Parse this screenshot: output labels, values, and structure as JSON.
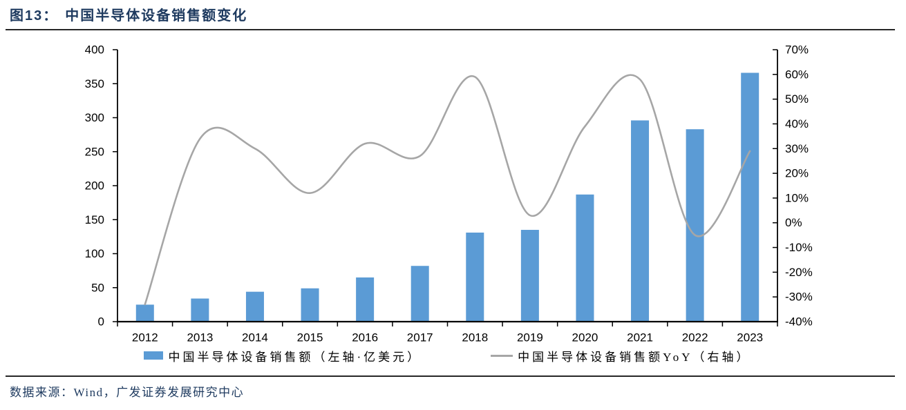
{
  "header": {
    "figure_label": "图13：",
    "figure_title": "中国半导体设备销售额变化"
  },
  "footer": {
    "source_text": "数据来源：Wind，广发证券发展研究中心"
  },
  "colors": {
    "accent": "#1E3A5F",
    "rule": "#262626",
    "bar": "#5B9BD5",
    "line": "#A6A6A6",
    "axis": "#000000"
  },
  "chart_data": {
    "type": "bar+line combo",
    "title": "中国半导体设备销售额变化",
    "categories": [
      "2012",
      "2013",
      "2014",
      "2015",
      "2016",
      "2017",
      "2018",
      "2019",
      "2020",
      "2021",
      "2022",
      "2023"
    ],
    "series": [
      {
        "name": "中国半导体设备销售额（左轴·亿美元）",
        "type": "bar",
        "axis": "left",
        "values": [
          25,
          34,
          44,
          49,
          65,
          82,
          131,
          135,
          187,
          296,
          283,
          366
        ]
      },
      {
        "name": "中国半导体设备销售额YoY（右轴）",
        "type": "line",
        "axis": "right",
        "values": [
          -33,
          34,
          30,
          12,
          32,
          27,
          59,
          3,
          39,
          58,
          -5,
          29
        ]
      }
    ],
    "left_axis": {
      "min": 0,
      "max": 400,
      "tick_values": [
        400,
        350,
        300,
        250,
        200,
        150,
        100,
        50,
        0
      ],
      "tick_labels": [
        "400",
        "350",
        "300",
        "250",
        "200",
        "150",
        "100",
        "50",
        "0"
      ]
    },
    "right_axis": {
      "min": -40,
      "max": 70,
      "tick_values": [
        70,
        60,
        50,
        40,
        30,
        20,
        10,
        0,
        -10,
        -20,
        -30,
        -40
      ],
      "tick_labels": [
        "70%",
        "60%",
        "50%",
        "40%",
        "30%",
        "20%",
        "10%",
        "0%",
        "-10%",
        "-20%",
        "-30%",
        "-40%"
      ]
    },
    "grid": "off",
    "legend_position": "bottom",
    "line_style": "smoothed"
  }
}
